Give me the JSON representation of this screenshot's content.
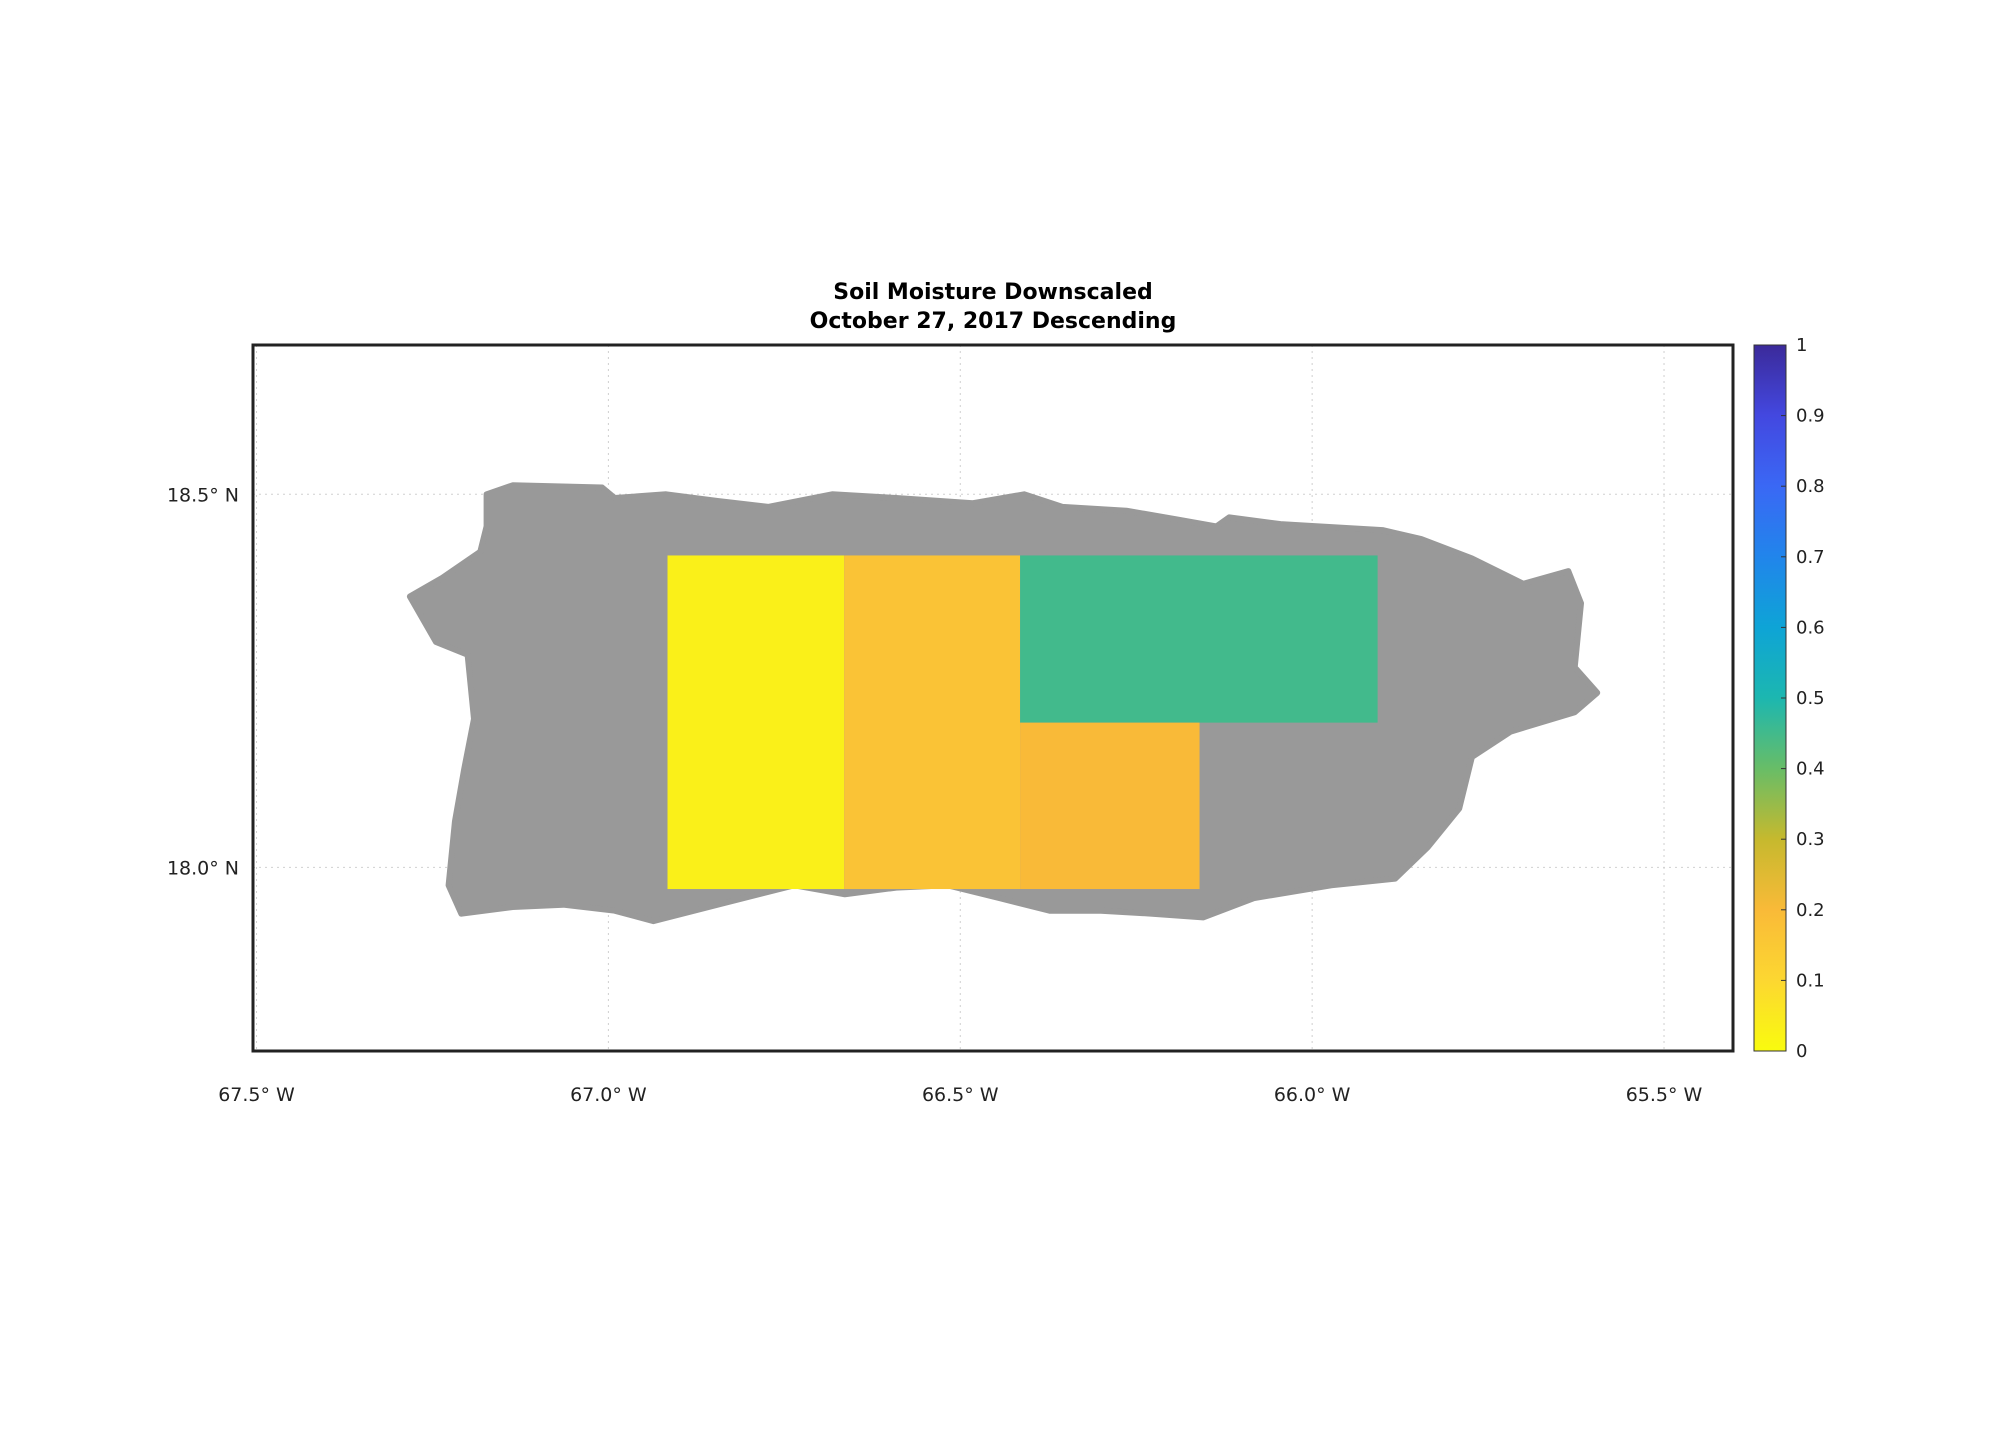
{
  "chart_data": {
    "type": "map",
    "title": "Soil Moisture Downscaled",
    "subtitle": "October 27, 2017 Descending",
    "xlim": [
      -67.505,
      -65.402
    ],
    "ylim": [
      17.754,
      18.7
    ],
    "xticks": [
      {
        "value": -67.5,
        "label": "67.5° W"
      },
      {
        "value": -67.0,
        "label": "67.0° W"
      },
      {
        "value": -66.5,
        "label": "66.5° W"
      },
      {
        "value": -66.0,
        "label": "66.0° W"
      },
      {
        "value": -65.5,
        "label": "65.5° W"
      }
    ],
    "yticks": [
      {
        "value": 18.0,
        "label": "18.0° N"
      },
      {
        "value": 18.5,
        "label": "18.5° N"
      }
    ],
    "grid": true,
    "land_color": "#999999",
    "land": {
      "lon": [
        -67.173,
        -67.136,
        -67.009,
        -66.991,
        -66.918,
        -66.845,
        -66.773,
        -66.682,
        -66.591,
        -66.482,
        -66.409,
        -66.355,
        -66.264,
        -66.191,
        -66.136,
        -66.118,
        -66.045,
        -65.991,
        -65.9,
        -65.845,
        -65.773,
        -65.7,
        -65.636,
        -65.618,
        -65.627,
        -65.595,
        -65.627,
        -65.718,
        -65.773,
        -65.791,
        -65.836,
        -65.882,
        -65.973,
        -66.082,
        -66.155,
        -66.227,
        -66.3,
        -66.373,
        -66.445,
        -66.518,
        -66.591,
        -66.664,
        -66.736,
        -66.845,
        -66.936,
        -66.991,
        -67.064,
        -67.136,
        -67.209,
        -67.227,
        -67.218,
        -67.205,
        -67.191,
        -67.2,
        -67.245,
        -67.282,
        -67.236,
        -67.182,
        -67.173
      ],
      "lat": [
        18.5,
        18.512,
        18.509,
        18.495,
        18.5,
        18.491,
        18.483,
        18.5,
        18.495,
        18.488,
        18.5,
        18.483,
        18.478,
        18.466,
        18.457,
        18.469,
        18.46,
        18.457,
        18.452,
        18.44,
        18.414,
        18.38,
        18.397,
        18.354,
        18.268,
        18.234,
        18.208,
        18.182,
        18.148,
        18.079,
        18.027,
        17.985,
        17.976,
        17.959,
        17.933,
        17.938,
        17.942,
        17.942,
        17.959,
        17.976,
        17.973,
        17.964,
        17.976,
        17.95,
        17.928,
        17.942,
        17.95,
        17.947,
        17.938,
        17.976,
        18.062,
        18.131,
        18.199,
        18.285,
        18.302,
        18.363,
        18.388,
        18.423,
        18.457
      ]
    },
    "regions": [
      {
        "lon": [
          -66.916,
          -66.665
        ],
        "lat": [
          17.971,
          18.418
        ],
        "value": 0.03
      },
      {
        "lon": [
          -66.665,
          -66.415
        ],
        "lat": [
          17.971,
          18.418
        ],
        "value": 0.17
      },
      {
        "lon": [
          -66.415,
          -65.907
        ],
        "lat": [
          18.194,
          18.418
        ],
        "value": 0.45
      },
      {
        "lon": [
          -66.415,
          -66.16
        ],
        "lat": [
          17.971,
          18.194
        ],
        "value": 0.2
      }
    ],
    "clim": [
      0,
      1
    ],
    "cticks": [
      0,
      0.1,
      0.2,
      0.3,
      0.4,
      0.5,
      0.6,
      0.7,
      0.8,
      0.9,
      1
    ],
    "colormap": [
      [
        0,
        "#f9fb0e"
      ],
      [
        0.1,
        "#fcd731"
      ],
      [
        0.2,
        "#f9ba38"
      ],
      [
        0.3,
        "#c6b92e"
      ],
      [
        0.4,
        "#68bd67"
      ],
      [
        0.5,
        "#1cb7b0"
      ],
      [
        0.6,
        "#0ea4d6"
      ],
      [
        0.7,
        "#2185eb"
      ],
      [
        0.8,
        "#3a68f5"
      ],
      [
        0.9,
        "#4348e0"
      ],
      [
        1,
        "#3b2a9a"
      ]
    ]
  }
}
